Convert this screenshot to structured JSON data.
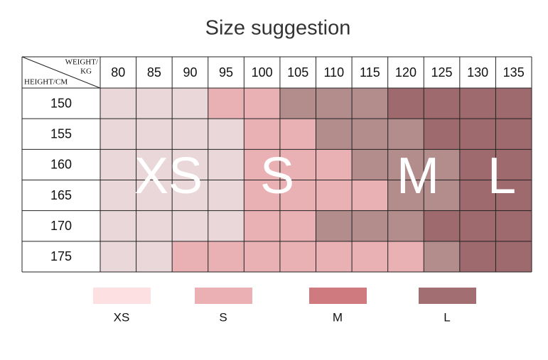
{
  "title": "Size suggestion",
  "table": {
    "corner": {
      "top": [
        "WEIGHT/",
        "KG"
      ],
      "bottom": "HEIGHT/CM"
    },
    "weights": [
      80,
      85,
      90,
      95,
      100,
      105,
      110,
      115,
      120,
      125,
      130,
      135
    ],
    "rows": [
      {
        "height": 150,
        "cells": [
          "#e9d7d9",
          "#e9d7d9",
          "#e9d7d9",
          "#e9b1b3",
          "#e9b1b3",
          "#b38c8c",
          "#b38c8c",
          "#b38c8c",
          "#9e6a6d",
          "#9e6a6d",
          "#9e6a6d",
          "#9e6a6d"
        ]
      },
      {
        "height": 155,
        "cells": [
          "#e9d7d9",
          "#e9d7d9",
          "#e9d7d9",
          "#e9d7d9",
          "#e9b1b3",
          "#e9b1b3",
          "#b38c8c",
          "#b38c8c",
          "#b38c8c",
          "#9e6a6d",
          "#9e6a6d",
          "#9e6a6d"
        ]
      },
      {
        "height": 160,
        "cells": [
          "#e9d7d9",
          "#e9d7d9",
          "#e9d7d9",
          "#e9d7d9",
          "#e9b1b3",
          "#e9b1b3",
          "#e9b1b3",
          "#b38c8c",
          "#b38c8c",
          "#b38c8c",
          "#9e6a6d",
          "#9e6a6d"
        ]
      },
      {
        "height": 165,
        "cells": [
          "#e9d7d9",
          "#e9d7d9",
          "#e9d7d9",
          "#e9d7d9",
          "#e9b1b3",
          "#e9b1b3",
          "#e9b1b3",
          "#e9b1b3",
          "#b38c8c",
          "#b38c8c",
          "#9e6a6d",
          "#9e6a6d"
        ]
      },
      {
        "height": 170,
        "cells": [
          "#e9d7d9",
          "#e9d7d9",
          "#e9d7d9",
          "#e9d7d9",
          "#e9b1b3",
          "#e9b1b3",
          "#b38c8c",
          "#b38c8c",
          "#b38c8c",
          "#9e6a6d",
          "#9e6a6d",
          "#9e6a6d"
        ]
      },
      {
        "height": 175,
        "cells": [
          "#e9d7d9",
          "#e9d7d9",
          "#e9b1b3",
          "#e9b1b3",
          "#e9b1b3",
          "#e9b1b3",
          "#e9b1b3",
          "#e9b1b3",
          "#e9b1b3",
          "#b38c8c",
          "#9e6a6d",
          "#9e6a6d"
        ]
      }
    ],
    "overlay": [
      "XS",
      "S",
      "M",
      "L"
    ]
  },
  "legend": [
    {
      "label": "XS",
      "color": "#fde0e2"
    },
    {
      "label": "S",
      "color": "#ebb0b4"
    },
    {
      "label": "M",
      "color": "#cf7a7e"
    },
    {
      "label": "L",
      "color": "#a36e71"
    }
  ]
}
